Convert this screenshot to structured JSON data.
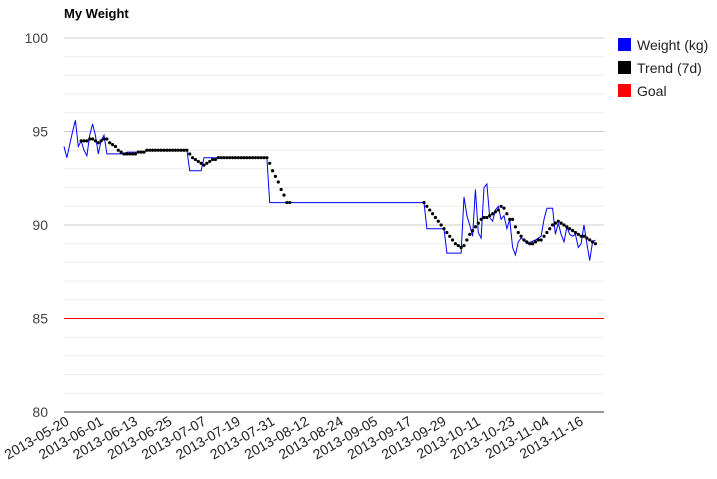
{
  "chart_data": {
    "type": "line",
    "title": "My Weight",
    "xlabel": "",
    "ylabel": "",
    "x_range": [
      "2013-05-20",
      "2013-11-25"
    ],
    "ylim": [
      80,
      100
    ],
    "y_ticks": [
      80,
      85,
      90,
      95,
      100
    ],
    "y_minor_step": 1,
    "x_ticks": [
      "2013-05-20",
      "2013-06-01",
      "2013-06-13",
      "2013-06-25",
      "2013-07-07",
      "2013-07-19",
      "2013-07-31",
      "2013-08-12",
      "2013-08-24",
      "2013-09-05",
      "2013-09-17",
      "2013-09-29",
      "2013-10-11",
      "2013-10-23",
      "2013-11-04",
      "2013-11-16"
    ],
    "grid": true,
    "legend_position": "right",
    "series": [
      {
        "name": "Weight (kg)",
        "color": "#0000ff",
        "style": "line",
        "points": [
          [
            "2013-05-20",
            94.2
          ],
          [
            "2013-05-21",
            93.6
          ],
          [
            "2013-05-22",
            94.3
          ],
          [
            "2013-05-23",
            95.0
          ],
          [
            "2013-05-24",
            95.6
          ],
          [
            "2013-05-25",
            94.2
          ],
          [
            "2013-05-26",
            94.5
          ],
          [
            "2013-05-27",
            94.0
          ],
          [
            "2013-05-28",
            93.7
          ],
          [
            "2013-05-29",
            94.8
          ],
          [
            "2013-05-30",
            95.4
          ],
          [
            "2013-05-31",
            94.8
          ],
          [
            "2013-06-01",
            93.8
          ],
          [
            "2013-06-02",
            94.5
          ],
          [
            "2013-06-03",
            94.8
          ],
          [
            "2013-06-04",
            93.8
          ],
          [
            "2013-06-10",
            93.8
          ],
          [
            "2013-06-11",
            93.9
          ],
          [
            "2013-06-17",
            93.9
          ],
          [
            "2013-06-18",
            94.0
          ],
          [
            "2013-07-02",
            94.0
          ],
          [
            "2013-07-03",
            92.9
          ],
          [
            "2013-07-07",
            92.9
          ],
          [
            "2013-07-08",
            93.6
          ],
          [
            "2013-07-30",
            93.6
          ],
          [
            "2013-07-31",
            91.2
          ],
          [
            "2013-09-23",
            91.2
          ],
          [
            "2013-09-24",
            89.8
          ],
          [
            "2013-09-30",
            89.8
          ],
          [
            "2013-10-01",
            88.5
          ],
          [
            "2013-10-06",
            88.5
          ],
          [
            "2013-10-07",
            91.5
          ],
          [
            "2013-10-08",
            90.5
          ],
          [
            "2013-10-09",
            90.0
          ],
          [
            "2013-10-10",
            89.4
          ],
          [
            "2013-10-11",
            91.9
          ],
          [
            "2013-10-12",
            89.6
          ],
          [
            "2013-10-13",
            89.3
          ],
          [
            "2013-10-14",
            92.0
          ],
          [
            "2013-10-15",
            92.2
          ],
          [
            "2013-10-16",
            90.4
          ],
          [
            "2013-10-17",
            90.2
          ],
          [
            "2013-10-18",
            90.8
          ],
          [
            "2013-10-19",
            91.0
          ],
          [
            "2013-10-20",
            90.3
          ],
          [
            "2013-10-21",
            90.5
          ],
          [
            "2013-10-22",
            89.8
          ],
          [
            "2013-10-23",
            90.3
          ],
          [
            "2013-10-24",
            88.8
          ],
          [
            "2013-10-25",
            88.4
          ],
          [
            "2013-10-26",
            89.1
          ],
          [
            "2013-10-27",
            89.3
          ],
          [
            "2013-10-28",
            89.2
          ],
          [
            "2013-10-29",
            89.0
          ],
          [
            "2013-11-01",
            89.2
          ],
          [
            "2013-11-03",
            89.4
          ],
          [
            "2013-11-04",
            90.3
          ],
          [
            "2013-11-05",
            90.9
          ],
          [
            "2013-11-07",
            90.9
          ],
          [
            "2013-11-08",
            89.5
          ],
          [
            "2013-11-09",
            90.1
          ],
          [
            "2013-11-10",
            89.5
          ],
          [
            "2013-11-11",
            89.1
          ],
          [
            "2013-11-12",
            89.9
          ],
          [
            "2013-11-13",
            89.5
          ],
          [
            "2013-11-14",
            89.4
          ],
          [
            "2013-11-15",
            89.5
          ],
          [
            "2013-11-16",
            88.8
          ],
          [
            "2013-11-17",
            89.0
          ],
          [
            "2013-11-18",
            90.0
          ],
          [
            "2013-11-19",
            89.0
          ],
          [
            "2013-11-20",
            88.1
          ],
          [
            "2013-11-21",
            89.1
          ],
          [
            "2013-11-22",
            89.2
          ]
        ]
      },
      {
        "name": "Trend (7d)",
        "color": "#000000",
        "style": "dotted",
        "points": [
          [
            "2013-05-26",
            94.5
          ],
          [
            "2013-05-27",
            94.5
          ],
          [
            "2013-05-28",
            94.5
          ],
          [
            "2013-05-29",
            94.6
          ],
          [
            "2013-05-30",
            94.6
          ],
          [
            "2013-05-31",
            94.5
          ],
          [
            "2013-06-01",
            94.4
          ],
          [
            "2013-06-02",
            94.5
          ],
          [
            "2013-06-03",
            94.6
          ],
          [
            "2013-06-04",
            94.6
          ],
          [
            "2013-06-05",
            94.4
          ],
          [
            "2013-06-06",
            94.3
          ],
          [
            "2013-06-07",
            94.2
          ],
          [
            "2013-06-08",
            94.0
          ],
          [
            "2013-06-09",
            93.9
          ],
          [
            "2013-06-10",
            93.8
          ],
          [
            "2013-06-11",
            93.8
          ],
          [
            "2013-06-12",
            93.8
          ],
          [
            "2013-06-13",
            93.8
          ],
          [
            "2013-06-14",
            93.8
          ],
          [
            "2013-06-15",
            93.9
          ],
          [
            "2013-06-16",
            93.9
          ],
          [
            "2013-06-17",
            93.9
          ],
          [
            "2013-06-18",
            94.0
          ],
          [
            "2013-06-19",
            94.0
          ],
          [
            "2013-06-20",
            94.0
          ],
          [
            "2013-06-21",
            94.0
          ],
          [
            "2013-06-22",
            94.0
          ],
          [
            "2013-06-23",
            94.0
          ],
          [
            "2013-06-24",
            94.0
          ],
          [
            "2013-06-25",
            94.0
          ],
          [
            "2013-06-26",
            94.0
          ],
          [
            "2013-06-27",
            94.0
          ],
          [
            "2013-06-28",
            94.0
          ],
          [
            "2013-06-29",
            94.0
          ],
          [
            "2013-06-30",
            94.0
          ],
          [
            "2013-07-01",
            94.0
          ],
          [
            "2013-07-02",
            94.0
          ],
          [
            "2013-07-03",
            93.8
          ],
          [
            "2013-07-04",
            93.6
          ],
          [
            "2013-07-05",
            93.5
          ],
          [
            "2013-07-06",
            93.4
          ],
          [
            "2013-07-07",
            93.3
          ],
          [
            "2013-07-08",
            93.2
          ],
          [
            "2013-07-09",
            93.3
          ],
          [
            "2013-07-10",
            93.4
          ],
          [
            "2013-07-11",
            93.5
          ],
          [
            "2013-07-12",
            93.5
          ],
          [
            "2013-07-13",
            93.6
          ],
          [
            "2013-07-14",
            93.6
          ],
          [
            "2013-07-15",
            93.6
          ],
          [
            "2013-07-16",
            93.6
          ],
          [
            "2013-07-17",
            93.6
          ],
          [
            "2013-07-18",
            93.6
          ],
          [
            "2013-07-19",
            93.6
          ],
          [
            "2013-07-20",
            93.6
          ],
          [
            "2013-07-21",
            93.6
          ],
          [
            "2013-07-22",
            93.6
          ],
          [
            "2013-07-23",
            93.6
          ],
          [
            "2013-07-24",
            93.6
          ],
          [
            "2013-07-25",
            93.6
          ],
          [
            "2013-07-26",
            93.6
          ],
          [
            "2013-07-27",
            93.6
          ],
          [
            "2013-07-28",
            93.6
          ],
          [
            "2013-07-29",
            93.6
          ],
          [
            "2013-07-30",
            93.6
          ],
          [
            "2013-07-31",
            93.3
          ],
          [
            "2013-08-01",
            92.9
          ],
          [
            "2013-08-02",
            92.6
          ],
          [
            "2013-08-03",
            92.3
          ],
          [
            "2013-08-04",
            91.9
          ],
          [
            "2013-08-05",
            91.6
          ],
          [
            "2013-08-06",
            91.2
          ],
          [
            "2013-08-07",
            91.2
          ],
          [
            "2013-09-23",
            91.2
          ],
          [
            "2013-09-24",
            91.0
          ],
          [
            "2013-09-25",
            90.8
          ],
          [
            "2013-09-26",
            90.6
          ],
          [
            "2013-09-27",
            90.4
          ],
          [
            "2013-09-28",
            90.2
          ],
          [
            "2013-09-29",
            90.0
          ],
          [
            "2013-09-30",
            89.8
          ],
          [
            "2013-10-01",
            89.6
          ],
          [
            "2013-10-02",
            89.4
          ],
          [
            "2013-10-03",
            89.2
          ],
          [
            "2013-10-04",
            89.0
          ],
          [
            "2013-10-05",
            88.9
          ],
          [
            "2013-10-06",
            88.8
          ],
          [
            "2013-10-07",
            88.9
          ],
          [
            "2013-10-08",
            89.2
          ],
          [
            "2013-10-09",
            89.5
          ],
          [
            "2013-10-10",
            89.7
          ],
          [
            "2013-10-11",
            89.9
          ],
          [
            "2013-10-12",
            90.1
          ],
          [
            "2013-10-13",
            90.3
          ],
          [
            "2013-10-14",
            90.4
          ],
          [
            "2013-10-15",
            90.4
          ],
          [
            "2013-10-16",
            90.5
          ],
          [
            "2013-10-17",
            90.6
          ],
          [
            "2013-10-18",
            90.7
          ],
          [
            "2013-10-19",
            90.8
          ],
          [
            "2013-10-20",
            91.0
          ],
          [
            "2013-10-21",
            90.9
          ],
          [
            "2013-10-22",
            90.6
          ],
          [
            "2013-10-23",
            90.3
          ],
          [
            "2013-10-24",
            90.3
          ],
          [
            "2013-10-25",
            89.9
          ],
          [
            "2013-10-26",
            89.6
          ],
          [
            "2013-10-27",
            89.4
          ],
          [
            "2013-10-28",
            89.2
          ],
          [
            "2013-10-29",
            89.1
          ],
          [
            "2013-10-30",
            89.0
          ],
          [
            "2013-10-31",
            89.0
          ],
          [
            "2013-11-01",
            89.1
          ],
          [
            "2013-11-02",
            89.2
          ],
          [
            "2013-11-03",
            89.2
          ],
          [
            "2013-11-04",
            89.4
          ],
          [
            "2013-11-05",
            89.6
          ],
          [
            "2013-11-06",
            89.8
          ],
          [
            "2013-11-07",
            90.0
          ],
          [
            "2013-11-08",
            90.1
          ],
          [
            "2013-11-09",
            90.2
          ],
          [
            "2013-11-10",
            90.1
          ],
          [
            "2013-11-11",
            90.0
          ],
          [
            "2013-11-12",
            89.9
          ],
          [
            "2013-11-13",
            89.8
          ],
          [
            "2013-11-14",
            89.7
          ],
          [
            "2013-11-15",
            89.6
          ],
          [
            "2013-11-16",
            89.5
          ],
          [
            "2013-11-17",
            89.4
          ],
          [
            "2013-11-18",
            89.4
          ],
          [
            "2013-11-19",
            89.3
          ],
          [
            "2013-11-20",
            89.2
          ],
          [
            "2013-11-21",
            89.1
          ],
          [
            "2013-11-22",
            89.0
          ]
        ]
      },
      {
        "name": "Goal",
        "color": "#ff0000",
        "style": "line",
        "points": [
          [
            "2013-05-20",
            85.0
          ],
          [
            "2013-11-25",
            85.0
          ]
        ]
      }
    ]
  }
}
